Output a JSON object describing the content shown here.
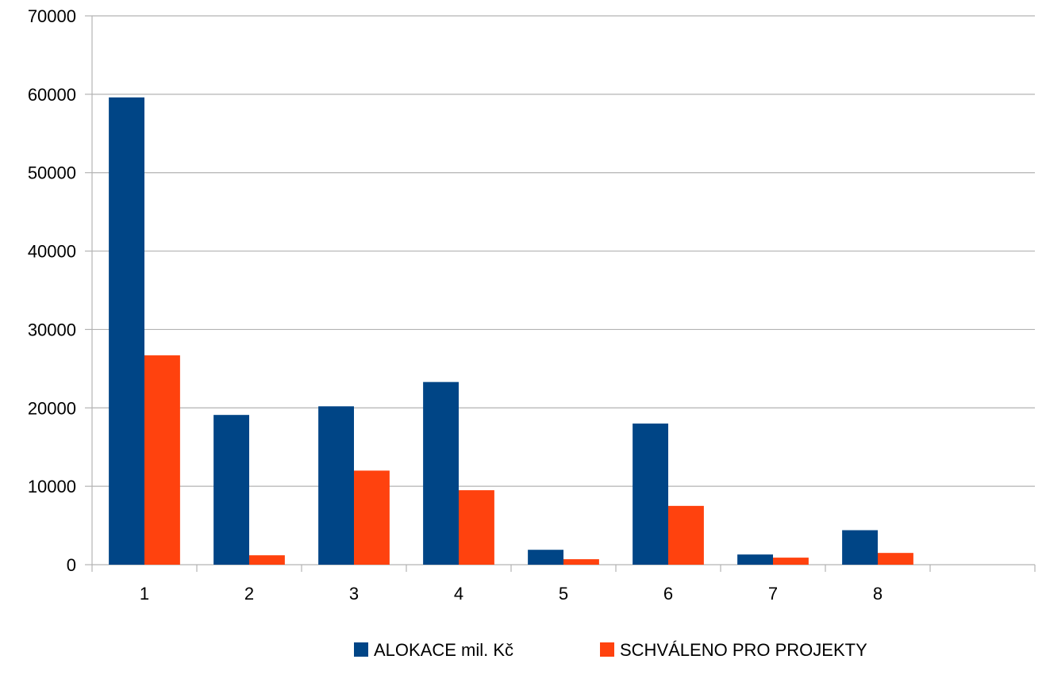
{
  "chart_data": {
    "type": "bar",
    "title": "",
    "xlabel": "",
    "ylabel": "",
    "categories": [
      "1",
      "2",
      "3",
      "4",
      "5",
      "6",
      "7",
      "8"
    ],
    "series": [
      {
        "name": "ALOKACE mil. Kč",
        "color": "#004586",
        "values": [
          59600,
          19100,
          20200,
          23300,
          1900,
          18000,
          1300,
          4400
        ]
      },
      {
        "name": "SCHVÁLENO PRO PROJEKTY",
        "color": "#ff420e",
        "values": [
          26700,
          1200,
          12000,
          9500,
          700,
          7500,
          900,
          1500
        ]
      }
    ],
    "ylim": [
      0,
      70000
    ],
    "yticks": [
      0,
      10000,
      20000,
      30000,
      40000,
      50000,
      60000,
      70000
    ],
    "grid": true,
    "legend_position": "bottom"
  }
}
